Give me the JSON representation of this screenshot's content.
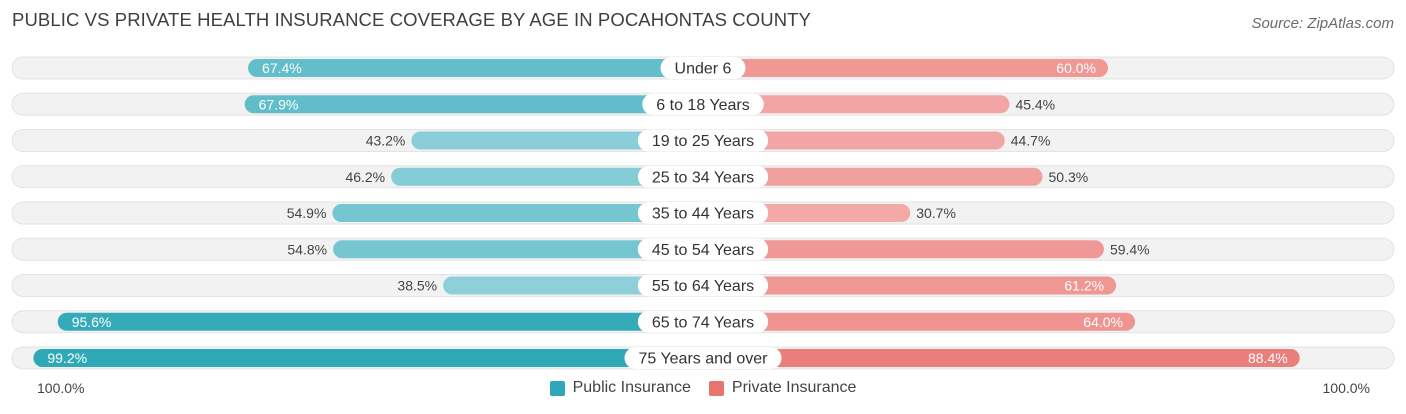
{
  "header": {
    "title": "PUBLIC VS PRIVATE HEALTH INSURANCE COVERAGE BY AGE IN POCAHONTAS COUNTY",
    "source": "Source: ZipAtlas.com"
  },
  "axis": {
    "left_label": "100.0%",
    "right_label": "100.0%"
  },
  "legend": {
    "public_label": "Public Insurance",
    "private_label": "Private Insurance"
  },
  "colors": {
    "public_dark": "#2ea8b8",
    "public_light": "#8ed0da",
    "private_dark": "#e8736f",
    "private_light": "#f3aaa7",
    "row_bg": "#f2f2f2"
  },
  "chart_data": {
    "type": "bar",
    "orientation": "horizontal-diverging",
    "categories": [
      "Under 6",
      "6 to 18 Years",
      "19 to 25 Years",
      "25 to 34 Years",
      "35 to 44 Years",
      "45 to 54 Years",
      "55 to 64 Years",
      "65 to 74 Years",
      "75 Years and over"
    ],
    "series": [
      {
        "name": "Public Insurance",
        "values": [
          67.4,
          67.9,
          43.2,
          46.2,
          54.9,
          54.8,
          38.5,
          95.6,
          99.2
        ]
      },
      {
        "name": "Private Insurance",
        "values": [
          60.0,
          45.4,
          44.7,
          50.3,
          30.7,
          59.4,
          61.2,
          64.0,
          88.4
        ]
      }
    ],
    "value_labels": {
      "public": [
        "67.4%",
        "67.9%",
        "43.2%",
        "46.2%",
        "54.9%",
        "54.8%",
        "38.5%",
        "95.6%",
        "99.2%"
      ],
      "private": [
        "60.0%",
        "45.4%",
        "44.7%",
        "50.3%",
        "30.7%",
        "59.4%",
        "61.2%",
        "64.0%",
        "88.4%"
      ]
    },
    "xlim": [
      -100,
      100
    ],
    "legend_position": "bottom-center"
  }
}
